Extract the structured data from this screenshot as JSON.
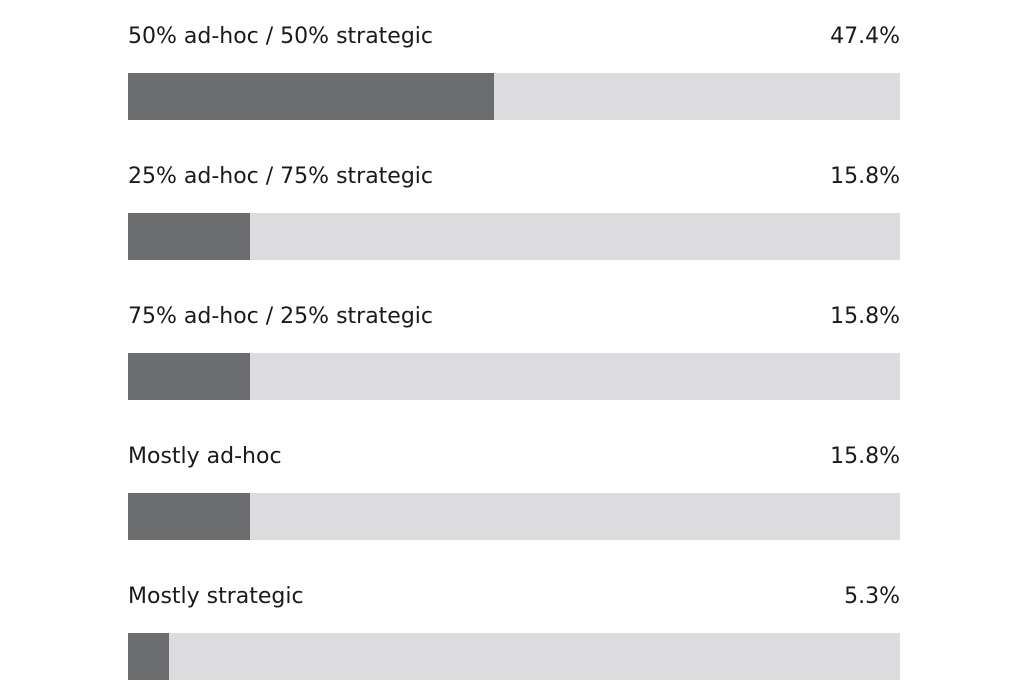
{
  "chart_data": {
    "type": "bar",
    "orientation": "horizontal",
    "categories": [
      "50% ad-hoc / 50% strategic",
      "25% ad-hoc / 75% strategic",
      "75% ad-hoc / 25% strategic",
      "Mostly ad-hoc",
      "Mostly strategic"
    ],
    "values": [
      47.4,
      15.8,
      15.8,
      15.8,
      5.3
    ],
    "value_labels": [
      "47.4%",
      "15.8%",
      "15.8%",
      "15.8%",
      "5.3%"
    ],
    "xlim": [
      0,
      100
    ],
    "unit": "%",
    "grid": false,
    "legend": "none",
    "colors": {
      "fill": "#6c6d6f",
      "track": "#dcdcde",
      "text": "#1a1a1a"
    }
  }
}
